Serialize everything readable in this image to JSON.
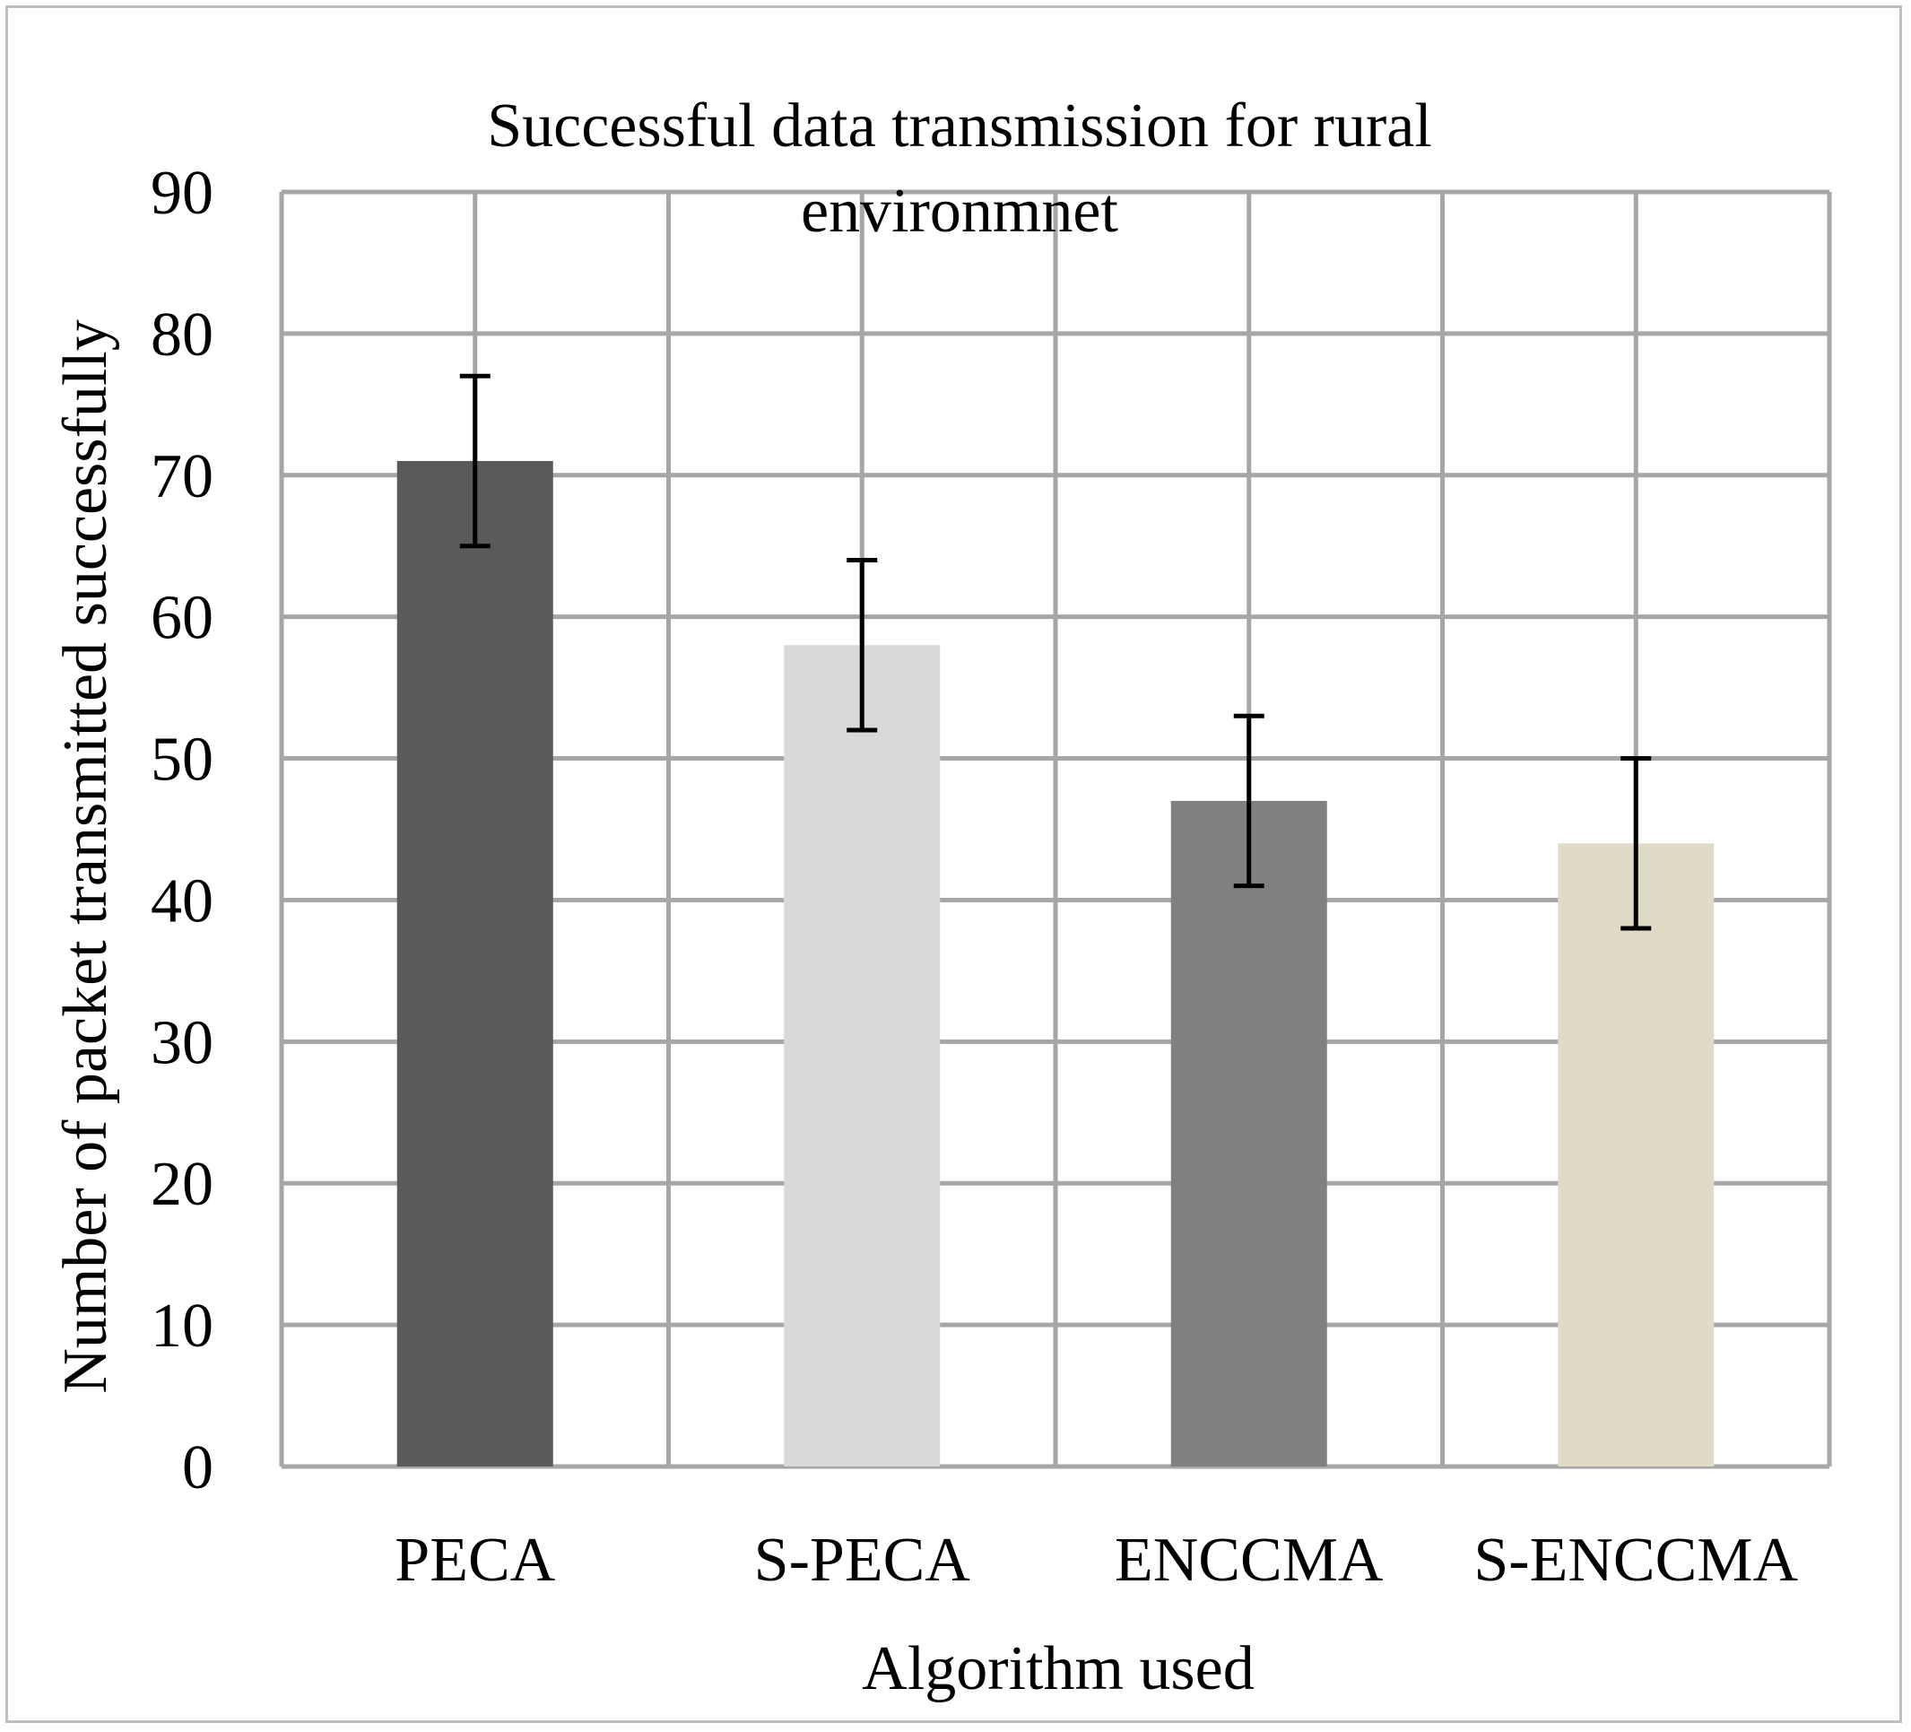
{
  "chart_data": {
    "type": "bar",
    "title": "Successful data transmission for rural environmnet",
    "title_lines": [
      "Successful data transmission for rural",
      "environmnet"
    ],
    "xlabel": "Algorithm used",
    "ylabel": "Number of packet transmitted successfully",
    "categories": [
      "PECA",
      "S-PECA",
      "ENCCMA",
      "S-ENCCMA"
    ],
    "values": [
      71,
      58,
      47,
      44
    ],
    "error_bars": [
      {
        "low": 65,
        "high": 77
      },
      {
        "low": 52,
        "high": 64
      },
      {
        "low": 41,
        "high": 53
      },
      {
        "low": 38,
        "high": 50
      }
    ],
    "bar_colors": [
      "#5a5a5a",
      "#d9d9d9",
      "#808080",
      "#e0dbc7"
    ],
    "ylim": [
      0,
      90
    ],
    "yticks": [
      0,
      10,
      20,
      30,
      40,
      50,
      60,
      70,
      80,
      90
    ],
    "grid": true,
    "grid_color": "#a6a6a6",
    "legend": "none"
  }
}
